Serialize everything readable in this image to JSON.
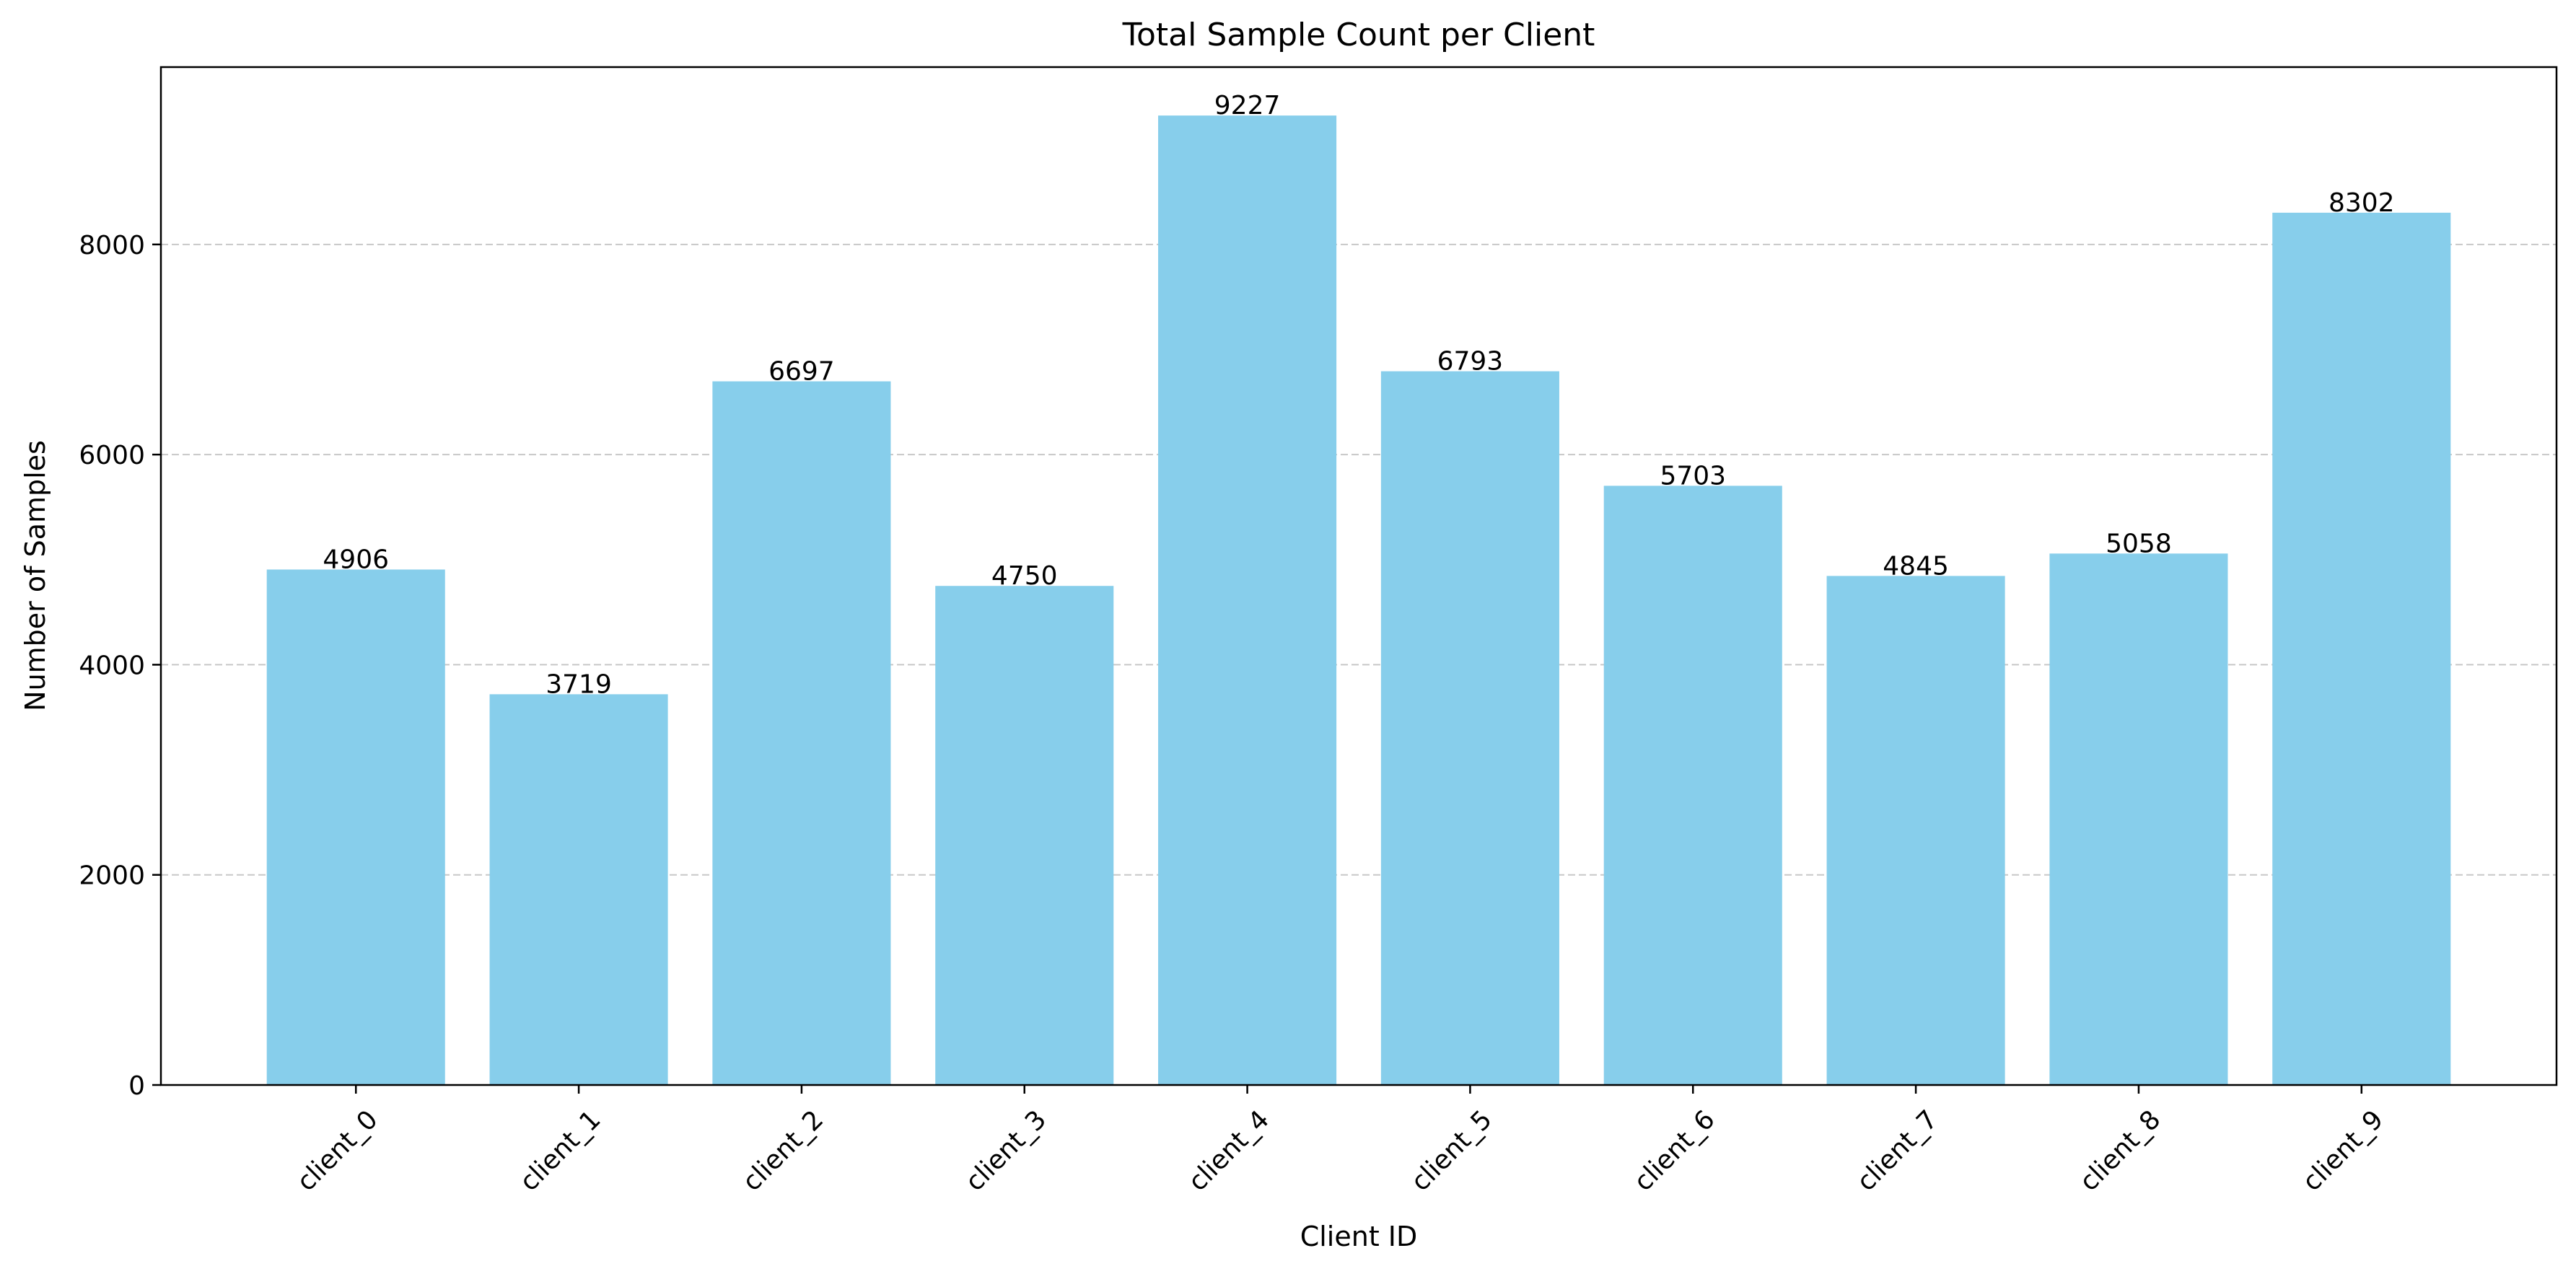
{
  "chart_data": {
    "type": "bar",
    "title": "Total Sample Count per Client",
    "xlabel": "Client ID",
    "ylabel": "Number of Samples",
    "categories": [
      "client_0",
      "client_1",
      "client_2",
      "client_3",
      "client_4",
      "client_5",
      "client_6",
      "client_7",
      "client_8",
      "client_9"
    ],
    "values": [
      4906,
      3719,
      6697,
      4750,
      9227,
      6793,
      5703,
      4845,
      5058,
      8302
    ],
    "data_labels": [
      "4906",
      "3719",
      "6697",
      "4750",
      "9227",
      "6793",
      "5703",
      "4845",
      "5058",
      "8302"
    ],
    "yticks": [
      0,
      2000,
      4000,
      6000,
      8000
    ],
    "ytick_labels": [
      "0",
      "2000",
      "4000",
      "6000",
      "8000"
    ],
    "ylim": [
      0,
      9688
    ],
    "grid": "y, dashed",
    "bar_color": "#87CEEB",
    "grid_color": "#C8C8C8",
    "legend": "none"
  }
}
